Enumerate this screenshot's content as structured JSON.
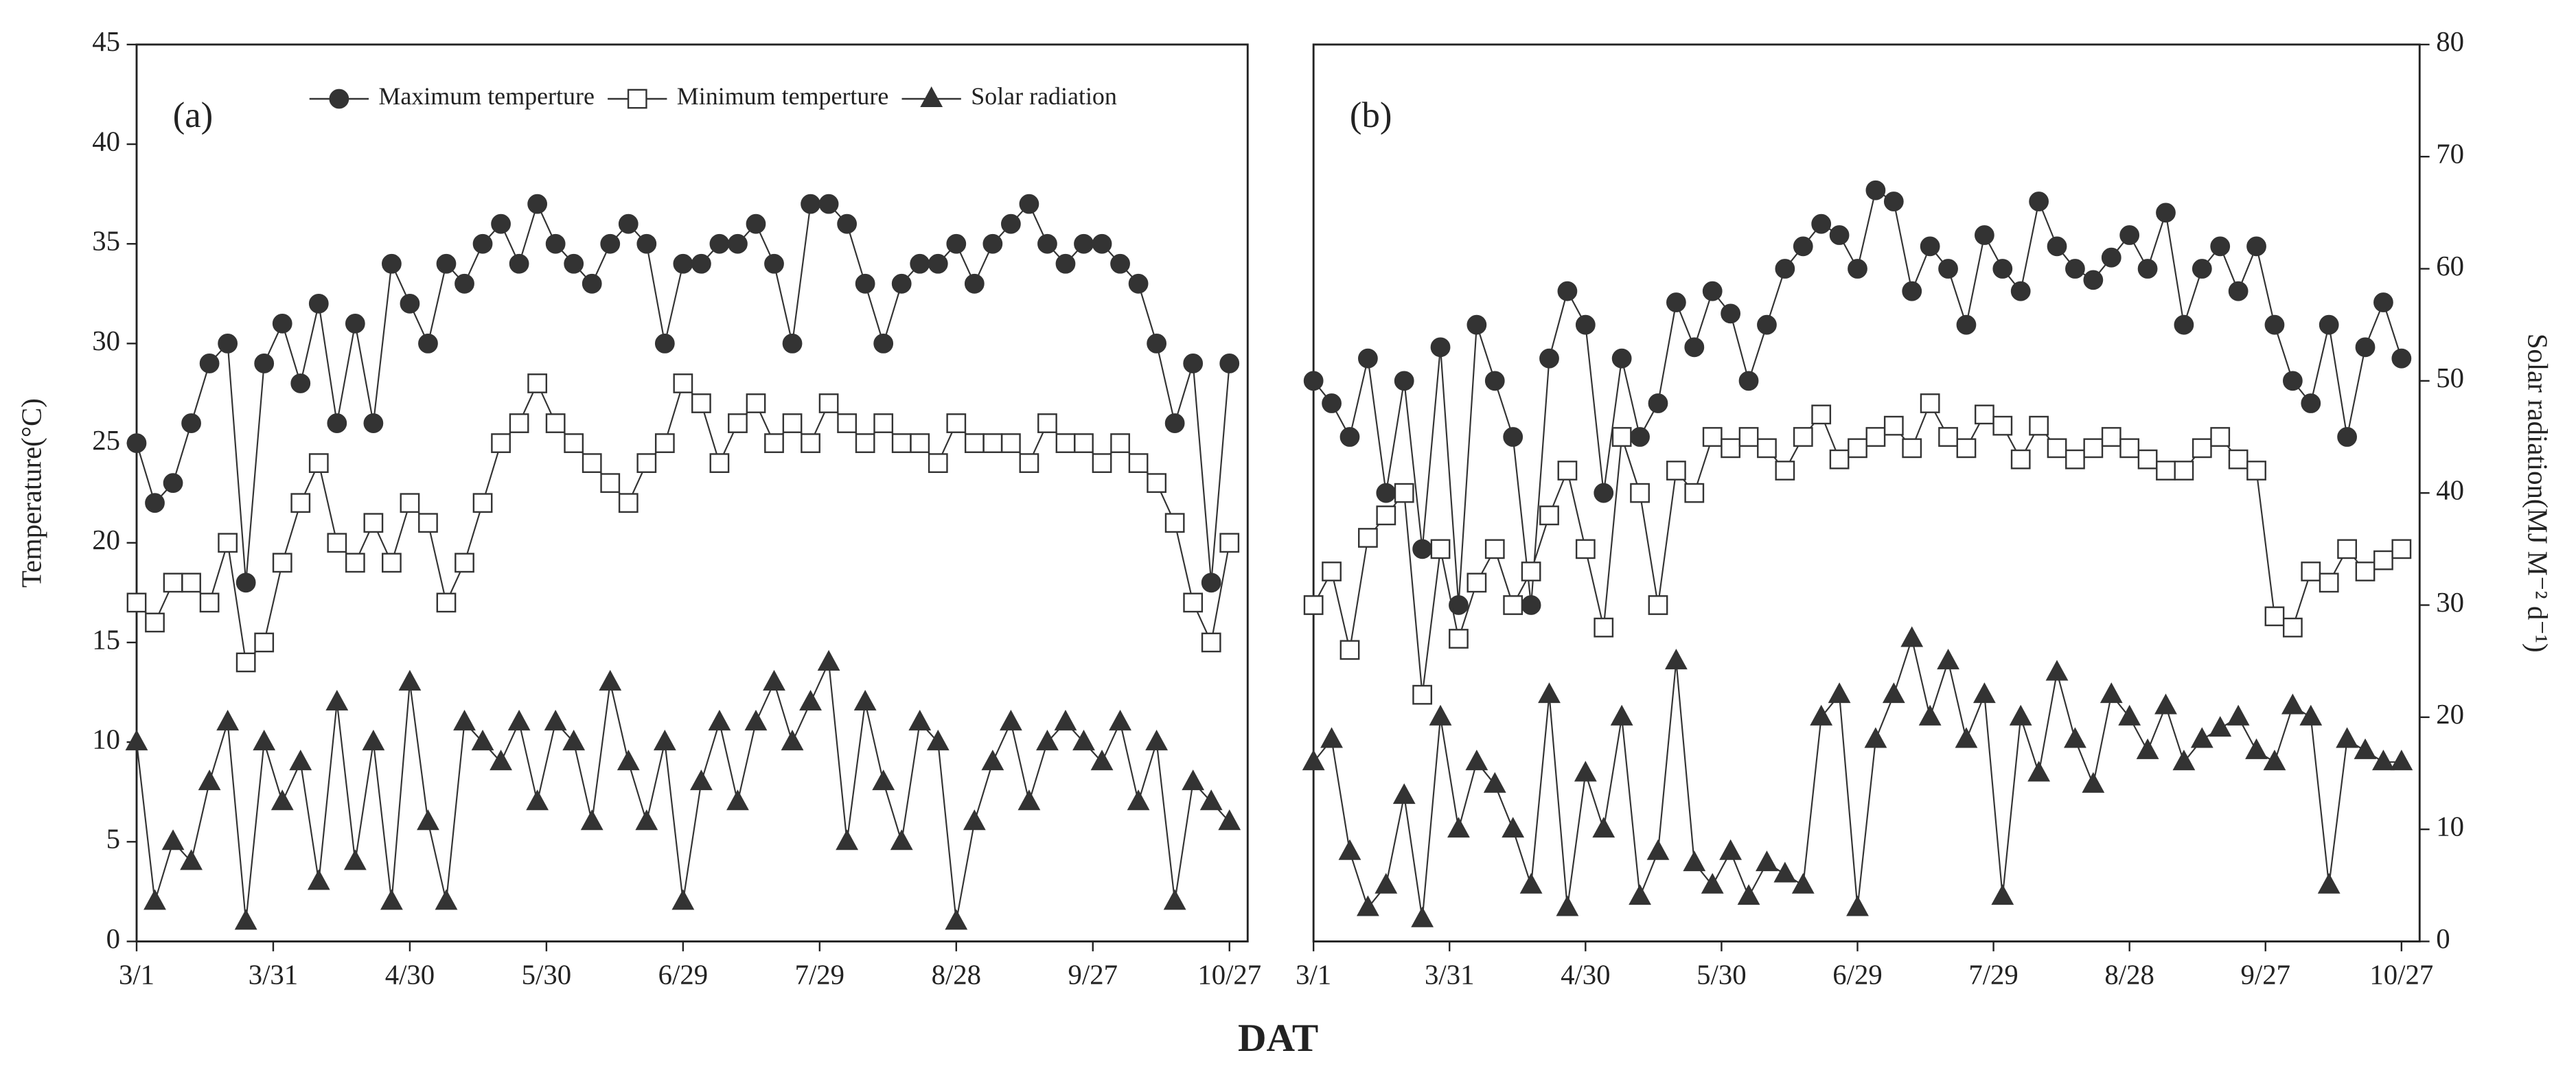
{
  "chart_data": [
    {
      "type": "line",
      "panel_label": "(a)",
      "ylabel": "Temperature(°C)",
      "xlabel": "DAT",
      "y_axis_side": "left",
      "legend": true,
      "x": [
        0,
        4,
        8,
        12,
        16,
        20,
        24,
        28,
        32,
        36,
        40,
        44,
        48,
        52,
        56,
        60,
        64,
        68,
        72,
        76,
        80,
        84,
        88,
        92,
        96,
        100,
        104,
        108,
        112,
        116,
        120,
        124,
        128,
        132,
        136,
        140,
        144,
        148,
        152,
        156,
        160,
        164,
        168,
        172,
        176,
        180,
        184,
        188,
        192,
        196,
        200,
        204,
        208,
        212,
        216,
        220,
        224,
        228,
        232,
        236,
        240
      ],
      "xlim": [
        0,
        244
      ],
      "xticks": [
        {
          "value": 0,
          "label": "3/1"
        },
        {
          "value": 30,
          "label": "3/31"
        },
        {
          "value": 60,
          "label": "4/30"
        },
        {
          "value": 90,
          "label": "5/30"
        },
        {
          "value": 120,
          "label": "6/29"
        },
        {
          "value": 150,
          "label": "7/29"
        },
        {
          "value": 180,
          "label": "8/28"
        },
        {
          "value": 210,
          "label": "9/27"
        },
        {
          "value": 240,
          "label": "10/27"
        }
      ],
      "ylim": [
        0,
        45
      ],
      "yticks": [
        0,
        5,
        10,
        15,
        20,
        25,
        30,
        35,
        40,
        45
      ],
      "series": [
        {
          "name": "Maximum temperture",
          "marker": "circle",
          "color": "#333333",
          "values": [
            25,
            22,
            23,
            26,
            29,
            30,
            18,
            29,
            31,
            28,
            32,
            26,
            31,
            26,
            34,
            32,
            30,
            34,
            33,
            35,
            36,
            34,
            37,
            35,
            34,
            33,
            35,
            36,
            35,
            30,
            34,
            34,
            35,
            35,
            36,
            34,
            30,
            37,
            37,
            36,
            33,
            30,
            33,
            34,
            34,
            35,
            33,
            35,
            36,
            37,
            35,
            34,
            35,
            35,
            34,
            33,
            30,
            26,
            29,
            18,
            29
          ]
        },
        {
          "name": "Minimum temperture",
          "marker": "square",
          "color": "#333333",
          "values": [
            17,
            16,
            18,
            18,
            17,
            20,
            14,
            15,
            19,
            22,
            24,
            20,
            19,
            21,
            19,
            22,
            21,
            17,
            19,
            22,
            25,
            26,
            28,
            26,
            25,
            24,
            23,
            22,
            24,
            25,
            28,
            27,
            24,
            26,
            27,
            25,
            26,
            25,
            27,
            26,
            25,
            26,
            25,
            25,
            24,
            26,
            25,
            25,
            25,
            24,
            26,
            25,
            25,
            24,
            25,
            24,
            23,
            21,
            17,
            15,
            20
          ]
        },
        {
          "name": "Solar radiation",
          "marker": "triangle",
          "color": "#333333",
          "values": [
            10,
            2,
            5,
            4,
            8,
            11,
            1,
            10,
            7,
            9,
            3,
            12,
            4,
            10,
            2,
            13,
            6,
            2,
            11,
            10,
            9,
            11,
            7,
            11,
            10,
            6,
            13,
            9,
            6,
            10,
            2,
            8,
            11,
            7,
            11,
            13,
            10,
            12,
            14,
            5,
            12,
            8,
            5,
            11,
            10,
            1,
            6,
            9,
            11,
            7,
            10,
            11,
            10,
            9,
            11,
            7,
            10,
            2,
            8,
            7,
            6
          ]
        }
      ]
    },
    {
      "type": "line",
      "panel_label": "(b)",
      "ylabel": "Solar radiation(MJ M⁻² d⁻¹)",
      "y_axis_side": "right",
      "legend": false,
      "x": [
        0,
        4,
        8,
        12,
        16,
        20,
        24,
        28,
        32,
        36,
        40,
        44,
        48,
        52,
        56,
        60,
        64,
        68,
        72,
        76,
        80,
        84,
        88,
        92,
        96,
        100,
        104,
        108,
        112,
        116,
        120,
        124,
        128,
        132,
        136,
        140,
        144,
        148,
        152,
        156,
        160,
        164,
        168,
        172,
        176,
        180,
        184,
        188,
        192,
        196,
        200,
        204,
        208,
        212,
        216,
        220,
        224,
        228,
        232,
        236,
        240
      ],
      "xlim": [
        0,
        244
      ],
      "xticks": [
        {
          "value": 0,
          "label": "3/1"
        },
        {
          "value": 30,
          "label": "3/31"
        },
        {
          "value": 60,
          "label": "4/30"
        },
        {
          "value": 90,
          "label": "5/30"
        },
        {
          "value": 120,
          "label": "6/29"
        },
        {
          "value": 150,
          "label": "7/29"
        },
        {
          "value": 180,
          "label": "8/28"
        },
        {
          "value": 210,
          "label": "9/27"
        },
        {
          "value": 240,
          "label": "10/27"
        }
      ],
      "ylim": [
        0,
        80
      ],
      "yticks": [
        0,
        10,
        20,
        30,
        40,
        50,
        60,
        70,
        80
      ],
      "series": [
        {
          "marker": "circle",
          "color": "#333333",
          "values": [
            50,
            48,
            45,
            52,
            40,
            50,
            35,
            53,
            30,
            55,
            50,
            45,
            30,
            52,
            58,
            55,
            40,
            52,
            45,
            48,
            57,
            53,
            58,
            56,
            50,
            55,
            60,
            62,
            64,
            63,
            60,
            67,
            66,
            58,
            62,
            60,
            55,
            63,
            60,
            58,
            66,
            62,
            60,
            59,
            61,
            63,
            60,
            65,
            55,
            60,
            62,
            58,
            62,
            55,
            50,
            48,
            55,
            45,
            53,
            57,
            52
          ]
        },
        {
          "marker": "square",
          "color": "#333333",
          "values": [
            30,
            33,
            26,
            36,
            38,
            40,
            22,
            35,
            27,
            32,
            35,
            30,
            33,
            38,
            42,
            35,
            28,
            45,
            40,
            30,
            42,
            40,
            45,
            44,
            45,
            44,
            42,
            45,
            47,
            43,
            44,
            45,
            46,
            44,
            48,
            45,
            44,
            47,
            46,
            43,
            46,
            44,
            43,
            44,
            45,
            44,
            43,
            42,
            42,
            44,
            45,
            43,
            42,
            29,
            28,
            33,
            32,
            35,
            33,
            34,
            35
          ]
        },
        {
          "marker": "triangle",
          "color": "#333333",
          "values": [
            16,
            18,
            8,
            3,
            5,
            13,
            2,
            20,
            10,
            16,
            14,
            10,
            5,
            22,
            3,
            15,
            10,
            20,
            4,
            8,
            25,
            7,
            5,
            8,
            4,
            7,
            6,
            5,
            20,
            22,
            3,
            18,
            22,
            27,
            20,
            25,
            18,
            22,
            4,
            20,
            15,
            24,
            18,
            14,
            22,
            20,
            17,
            21,
            16,
            18,
            19,
            20,
            17,
            16,
            21,
            20,
            5,
            18,
            17,
            16,
            16
          ]
        }
      ]
    }
  ]
}
